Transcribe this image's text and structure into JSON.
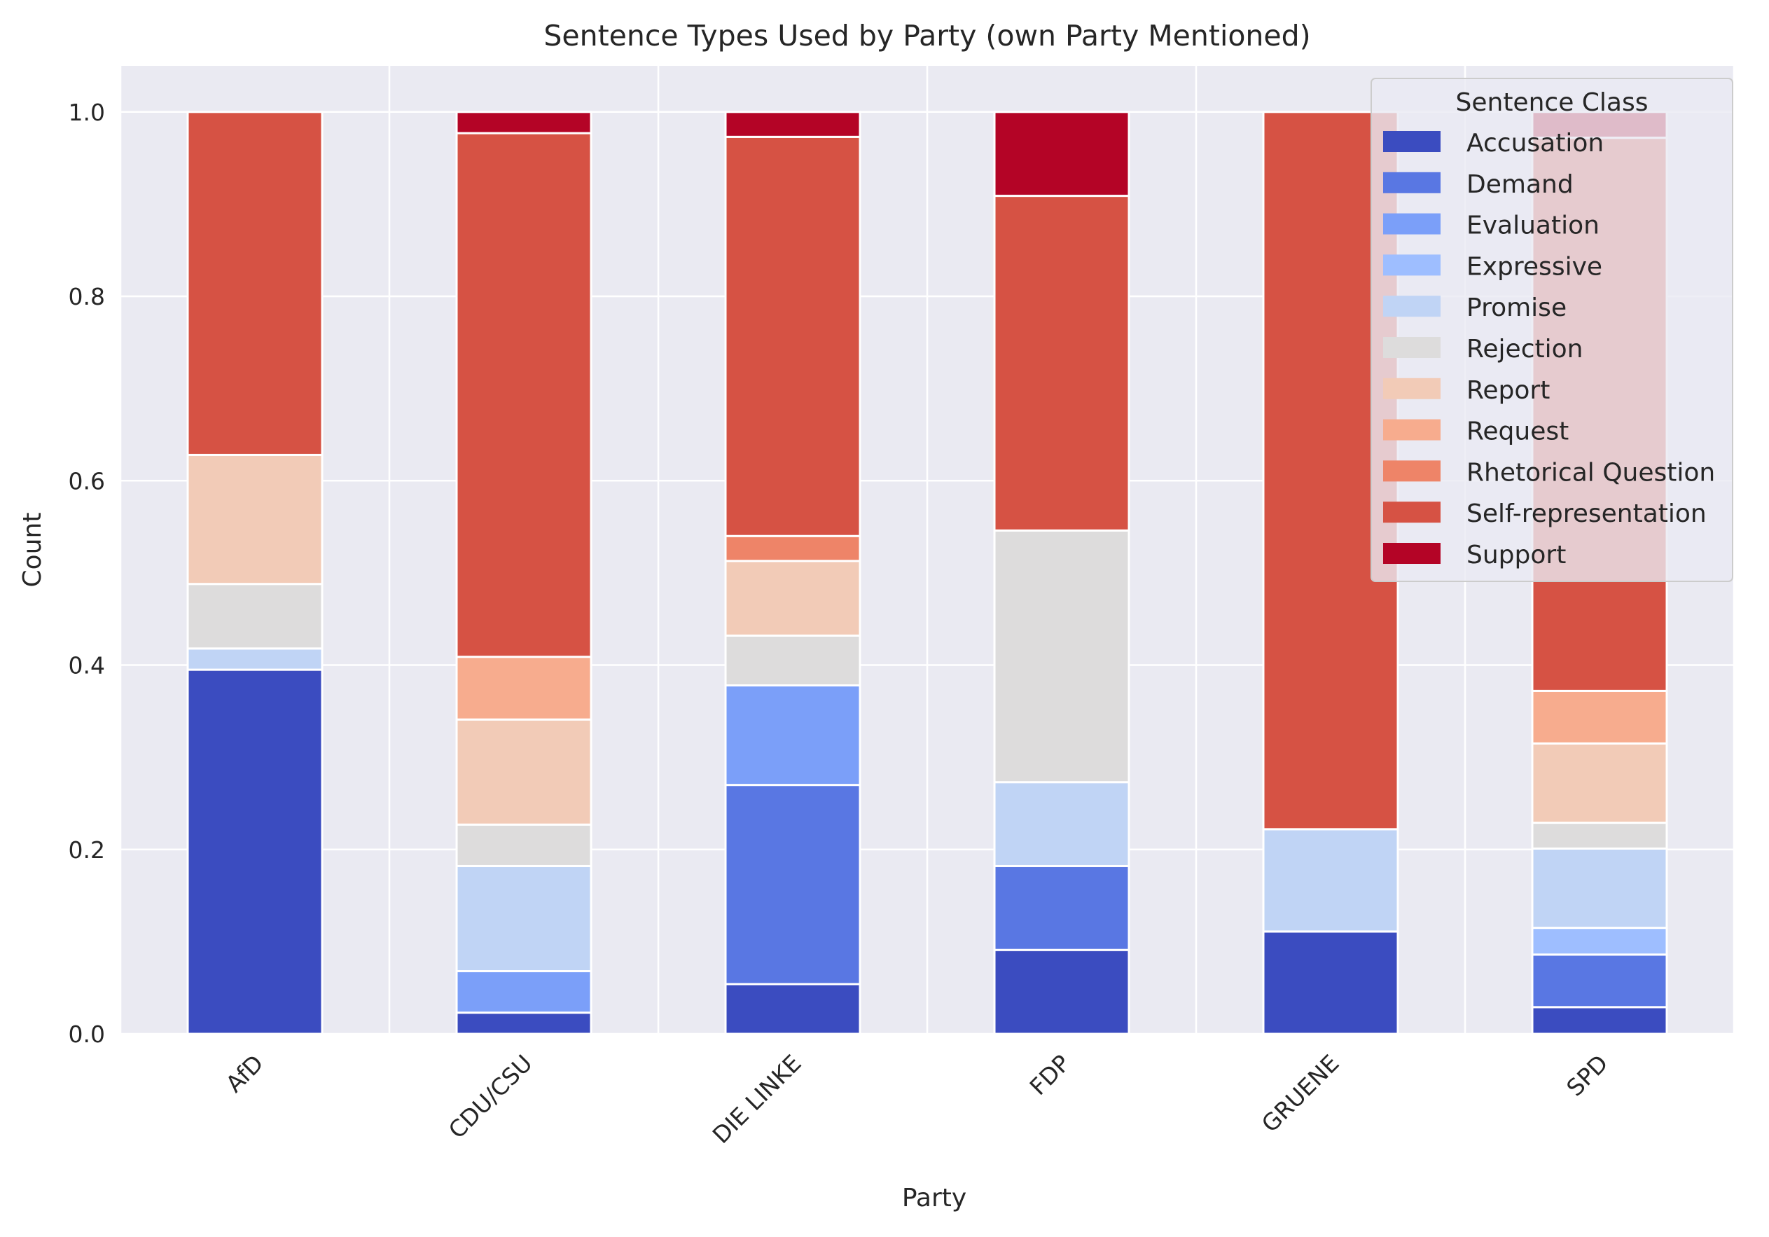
{
  "chart_data": {
    "type": "bar",
    "stacked": true,
    "title": "Sentence Types Used by Party (own Party Mentioned)",
    "xlabel": "Party",
    "ylabel": "Count",
    "ylim": [
      0,
      1.05
    ],
    "yticks": [
      0.0,
      0.2,
      0.4,
      0.6,
      0.8,
      1.0
    ],
    "ytick_labels": [
      "0.0",
      "0.2",
      "0.4",
      "0.6",
      "0.8",
      "1.0"
    ],
    "categories": [
      "AfD",
      "CDU/CSU",
      "DIE LINKE",
      "FDP",
      "GRUENE",
      "SPD"
    ],
    "grid": true,
    "legend": {
      "title": "Sentence Class",
      "position": "top-right"
    },
    "series": [
      {
        "name": "Accusation",
        "color": "#3b4cc0",
        "values": [
          0.395,
          0.023,
          0.054,
          0.091,
          0.111,
          0.029
        ]
      },
      {
        "name": "Demand",
        "color": "#5977e3",
        "values": [
          0.0,
          0.0,
          0.216,
          0.091,
          0.0,
          0.057
        ]
      },
      {
        "name": "Evaluation",
        "color": "#7b9ff9",
        "values": [
          0.0,
          0.045,
          0.108,
          0.0,
          0.0,
          0.0
        ]
      },
      {
        "name": "Expressive",
        "color": "#9ebeff",
        "values": [
          0.0,
          0.0,
          0.0,
          0.0,
          0.0,
          0.029
        ]
      },
      {
        "name": "Promise",
        "color": "#c0d4f5",
        "values": [
          0.023,
          0.114,
          0.0,
          0.091,
          0.111,
          0.086
        ]
      },
      {
        "name": "Rejection",
        "color": "#dddcdc",
        "values": [
          0.07,
          0.045,
          0.054,
          0.273,
          0.0,
          0.028
        ]
      },
      {
        "name": "Report",
        "color": "#f2cbb7",
        "values": [
          0.14,
          0.114,
          0.081,
          0.0,
          0.0,
          0.086
        ]
      },
      {
        "name": "Request",
        "color": "#f7ac8e",
        "values": [
          0.0,
          0.068,
          0.0,
          0.0,
          0.0,
          0.057
        ]
      },
      {
        "name": "Rhetorical Question",
        "color": "#ee8468",
        "values": [
          0.0,
          0.0,
          0.027,
          0.0,
          0.0,
          0.0
        ]
      },
      {
        "name": "Self-representation",
        "color": "#d65244",
        "values": [
          0.372,
          0.568,
          0.433,
          0.363,
          0.778,
          0.6
        ]
      },
      {
        "name": "Support",
        "color": "#b40426",
        "values": [
          0.0,
          0.023,
          0.027,
          0.091,
          0.0,
          0.028
        ]
      }
    ]
  }
}
